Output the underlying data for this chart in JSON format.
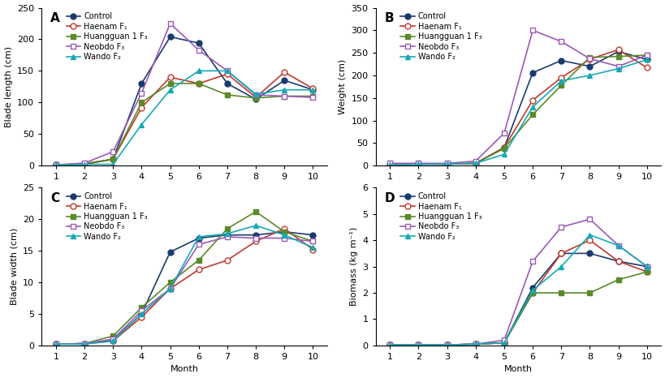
{
  "months": [
    1,
    2,
    3,
    4,
    5,
    6,
    7,
    8,
    9,
    10
  ],
  "panel_A": {
    "title": "A",
    "ylabel": "Blade length (cm)",
    "ylim": [
      0,
      250
    ],
    "yticks": [
      0,
      50,
      100,
      150,
      200,
      250
    ],
    "Control": [
      1,
      2,
      10,
      130,
      204,
      194,
      130,
      105,
      135,
      120
    ],
    "Haenam": [
      1,
      3,
      10,
      92,
      140,
      130,
      145,
      108,
      148,
      122
    ],
    "Huangguan": [
      1,
      3,
      10,
      100,
      130,
      130,
      112,
      107,
      110,
      110
    ],
    "Neobdo": [
      1,
      4,
      22,
      115,
      225,
      183,
      150,
      112,
      110,
      108
    ],
    "Wando": [
      1,
      2,
      2,
      65,
      120,
      150,
      150,
      113,
      120,
      120
    ]
  },
  "panel_B": {
    "title": "B",
    "ylabel": "Weight (cm)",
    "ylim": [
      0,
      350
    ],
    "yticks": [
      0,
      50,
      100,
      150,
      200,
      250,
      300,
      350
    ],
    "Control": [
      2,
      3,
      3,
      5,
      40,
      206,
      233,
      220,
      253,
      235
    ],
    "Haenam": [
      2,
      4,
      3,
      5,
      40,
      145,
      195,
      236,
      257,
      217
    ],
    "Huangguan": [
      2,
      4,
      4,
      5,
      38,
      113,
      178,
      240,
      242,
      245
    ],
    "Neobdo": [
      5,
      5,
      5,
      10,
      72,
      300,
      275,
      237,
      220,
      245
    ],
    "Wando": [
      2,
      3,
      3,
      5,
      25,
      130,
      188,
      200,
      215,
      235
    ]
  },
  "panel_C": {
    "title": "C",
    "ylabel": "Blade width (cm)",
    "ylim": [
      0,
      25
    ],
    "yticks": [
      0,
      5,
      10,
      15,
      20,
      25
    ],
    "Control": [
      0.2,
      0.3,
      0.8,
      5.0,
      14.8,
      17.0,
      17.5,
      17.5,
      18.0,
      17.5
    ],
    "Haenam": [
      0.2,
      0.3,
      0.7,
      4.5,
      9.0,
      12.0,
      13.5,
      16.5,
      18.5,
      15.2
    ],
    "Huangguan": [
      0.2,
      0.3,
      1.5,
      6.0,
      10.0,
      13.5,
      18.5,
      21.2,
      18.0,
      16.5
    ],
    "Neobdo": [
      0.2,
      0.3,
      1.0,
      5.5,
      9.0,
      16.0,
      17.2,
      17.0,
      17.0,
      16.5
    ],
    "Wando": [
      0.2,
      0.2,
      0.7,
      5.0,
      9.0,
      17.2,
      17.7,
      19.0,
      17.5,
      15.5
    ]
  },
  "panel_D": {
    "title": "D",
    "ylabel": "Biomass (kg m⁻¹)",
    "ylim": [
      0,
      6
    ],
    "yticks": [
      0,
      1,
      2,
      3,
      4,
      5,
      6
    ],
    "Control": [
      0.02,
      0.02,
      0.02,
      0.05,
      0.1,
      2.2,
      3.5,
      3.5,
      3.2,
      3.0
    ],
    "Haenam": [
      0.02,
      0.02,
      0.02,
      0.05,
      0.1,
      2.0,
      3.5,
      4.0,
      3.2,
      2.8
    ],
    "Huangguan": [
      0.02,
      0.02,
      0.02,
      0.05,
      0.1,
      2.0,
      2.0,
      2.0,
      2.5,
      2.8
    ],
    "Neobdo": [
      0.02,
      0.02,
      0.02,
      0.05,
      0.2,
      3.2,
      4.5,
      4.8,
      3.8,
      3.0
    ],
    "Wando": [
      0.02,
      0.02,
      0.02,
      0.05,
      0.1,
      2.1,
      3.0,
      4.2,
      3.8,
      3.0
    ]
  },
  "series": [
    "Control",
    "Haenam",
    "Huangguan",
    "Neobdo",
    "Wando"
  ],
  "labels": [
    "Control",
    "Haenam F₁",
    "Huangguan 1 F₃",
    "Neobdo F₃",
    "Wando F₂"
  ],
  "colors": [
    "#1a3a6e",
    "#c0392b",
    "#5a8a2a",
    "#9b59b6",
    "#17a9b5"
  ],
  "markers": [
    "o",
    "o",
    "s",
    "s",
    "^"
  ],
  "fillstyles": [
    "full",
    "none",
    "full",
    "none",
    "full"
  ]
}
